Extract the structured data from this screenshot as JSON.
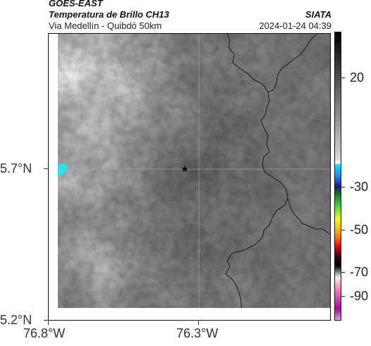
{
  "header": {
    "satellite": "GOES-EAST",
    "product": "Temperatura de Brillo CH13",
    "route": "Via Medellín - Quibdó 50km",
    "org": "SIATA",
    "datetime": "2024-01-24 04:39"
  },
  "axes": {
    "y_labels": [
      "5.7°N",
      "5.2°N"
    ],
    "x_labels": [
      "76.8°W",
      "76.3°W"
    ]
  },
  "colorbar": {
    "labels": [
      "20",
      "-30",
      "-50",
      "-70",
      "-90"
    ]
  },
  "marker": {
    "symbol": "★"
  }
}
